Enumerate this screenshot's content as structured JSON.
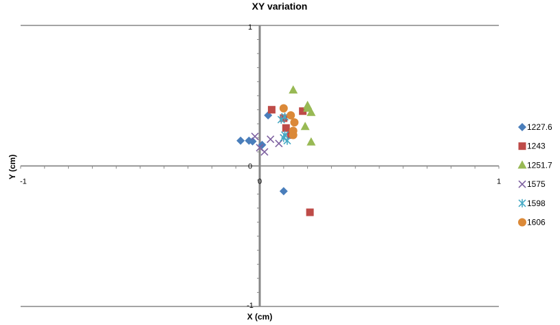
{
  "chart_data": {
    "type": "scatter",
    "title": "XY variation",
    "xlabel": "X (cm)",
    "ylabel": "Y (cm)",
    "xlim": [
      -1,
      1
    ],
    "ylim": [
      -1,
      1
    ],
    "x_ticks": [
      -1,
      0,
      1
    ],
    "y_ticks": [
      -1,
      0,
      1
    ],
    "grid": "horizontal major",
    "legend_position": "right",
    "series": [
      {
        "name": "1227.6",
        "marker": "diamond",
        "color": "#4A7EBB",
        "points": [
          [
            -0.08,
            0.18
          ],
          [
            -0.045,
            0.18
          ],
          [
            -0.03,
            0.175
          ],
          [
            0.01,
            0.15
          ],
          [
            0.035,
            0.36
          ],
          [
            0.1,
            -0.18
          ]
        ]
      },
      {
        "name": "1243",
        "marker": "square",
        "color": "#BE4B48",
        "points": [
          [
            0.05,
            0.4
          ],
          [
            0.1,
            0.34
          ],
          [
            0.11,
            0.27
          ],
          [
            0.13,
            0.22
          ],
          [
            0.18,
            0.39
          ],
          [
            0.21,
            -0.33
          ]
        ]
      },
      {
        "name": "1251.7",
        "marker": "triangle",
        "color": "#98B954",
        "points": [
          [
            0.14,
            0.54
          ],
          [
            0.19,
            0.28
          ],
          [
            0.2,
            0.41
          ],
          [
            0.2,
            0.43
          ],
          [
            0.215,
            0.38
          ],
          [
            0.215,
            0.17
          ]
        ]
      },
      {
        "name": "1575",
        "marker": "x",
        "color": "#7D60A0",
        "points": [
          [
            -0.02,
            0.21
          ],
          [
            0.0,
            0.13
          ],
          [
            0.02,
            0.1
          ],
          [
            0.045,
            0.19
          ],
          [
            0.08,
            0.16
          ],
          [
            0.1,
            0.2
          ]
        ]
      },
      {
        "name": "1598",
        "marker": "star",
        "color": "#46AAC5",
        "points": [
          [
            0.09,
            0.33
          ],
          [
            0.1,
            0.2
          ],
          [
            0.105,
            0.22
          ],
          [
            0.115,
            0.18
          ],
          [
            0.105,
            0.35
          ]
        ]
      },
      {
        "name": "1606",
        "marker": "circle",
        "color": "#DB8938",
        "points": [
          [
            0.1,
            0.41
          ],
          [
            0.13,
            0.36
          ],
          [
            0.145,
            0.31
          ],
          [
            0.14,
            0.25
          ],
          [
            0.14,
            0.22
          ]
        ]
      }
    ]
  }
}
